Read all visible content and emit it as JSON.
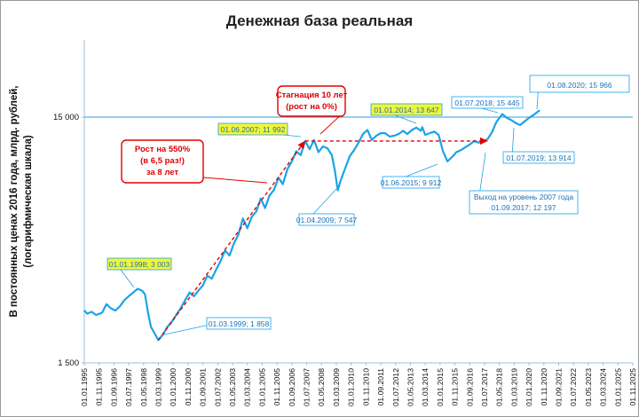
{
  "chart_data": {
    "type": "line",
    "title": "Денежная база реальная",
    "ylabel_lines": [
      "В постоянных ценах 2016 года, млрд. рублей,",
      "(логарифмическая шкала)"
    ],
    "y_scale": "log",
    "ylim": [
      1500,
      30000
    ],
    "y_ticks": [
      1500,
      15000
    ],
    "y_tick_labels": [
      "1 500",
      "15 000"
    ],
    "x_range": [
      "1995-01-01",
      "2025-11-01"
    ],
    "x_tick_labels": [
      "01.01.1995",
      "01.11.1995",
      "01.09.1996",
      "01.07.1997",
      "01.05.1998",
      "01.03.1999",
      "01.01.2000",
      "01.11.2000",
      "01.09.2001",
      "01.07.2002",
      "01.05.2003",
      "01.03.2004",
      "01.01.2005",
      "01.11.2005",
      "01.09.2006",
      "01.07.2007",
      "01.05.2008",
      "01.03.2009",
      "01.01.2010",
      "01.11.2010",
      "01.09.2011",
      "01.07.2012",
      "01.05.2013",
      "01.03.2014",
      "01.01.2015",
      "01.11.2015",
      "01.09.2016",
      "01.07.2017",
      "01.05.2018",
      "01.03.2019",
      "01.01.2020",
      "01.11.2020",
      "01.09.2021",
      "01.07.2022",
      "01.05.2023",
      "01.03.2024",
      "01.01.2025",
      "01.11.2025"
    ],
    "line_color": "#1aa3e8",
    "series": [
      {
        "x": [
          "1995-01-01",
          "1995-03-01",
          "1995-06-01",
          "1995-09-01",
          "1996-01-01",
          "1996-04-01",
          "1996-07-01",
          "1996-10-01",
          "1997-01-01",
          "1997-04-01",
          "1997-07-01",
          "1997-10-01",
          "1998-01-01",
          "1998-04-01",
          "1998-06-01",
          "1998-08-01",
          "1998-10-01",
          "1998-12-01",
          "1999-03-01",
          "1999-06-01",
          "1999-09-01",
          "1999-12-01",
          "2000-03-01",
          "2000-06-01",
          "2000-09-01",
          "2000-12-01",
          "2001-03-01",
          "2001-06-01",
          "2001-09-01",
          "2001-12-01",
          "2002-03-01",
          "2002-06-01",
          "2002-09-01",
          "2002-12-01",
          "2003-03-01",
          "2003-06-01",
          "2003-09-01",
          "2003-12-01",
          "2004-03-01",
          "2004-06-01",
          "2004-09-01",
          "2004-12-01",
          "2005-03-01",
          "2005-06-01",
          "2005-09-01",
          "2005-12-01",
          "2006-03-01",
          "2006-06-01",
          "2006-09-01",
          "2006-12-01",
          "2007-03-01",
          "2007-06-01",
          "2007-09-01",
          "2007-12-01",
          "2008-03-01",
          "2008-06-01",
          "2008-09-01",
          "2008-12-01",
          "2009-02-01",
          "2009-04-01",
          "2009-06-01",
          "2009-09-01",
          "2009-12-01",
          "2010-03-01",
          "2010-06-01",
          "2010-09-01",
          "2010-12-01",
          "2011-03-01",
          "2011-06-01",
          "2011-09-01",
          "2011-12-01",
          "2012-03-01",
          "2012-06-01",
          "2012-09-01",
          "2012-12-01",
          "2013-03-01",
          "2013-06-01",
          "2013-09-01",
          "2013-12-01",
          "2014-01-01",
          "2014-03-01",
          "2014-06-01",
          "2014-09-01",
          "2014-12-01",
          "2015-03-01",
          "2015-06-01",
          "2015-09-01",
          "2015-12-01",
          "2016-03-01",
          "2016-06-01",
          "2016-09-01",
          "2016-12-01",
          "2017-03-01",
          "2017-06-01",
          "2017-09-01",
          "2017-12-01",
          "2018-03-01",
          "2018-07-01",
          "2018-10-01",
          "2019-01-01",
          "2019-04-01",
          "2019-07-01",
          "2019-10-01",
          "2020-01-01",
          "2020-04-01",
          "2020-08-01"
        ],
        "values": [
          2450,
          2380,
          2420,
          2350,
          2400,
          2600,
          2500,
          2450,
          2550,
          2700,
          2800,
          2900,
          3003,
          2950,
          2850,
          2400,
          2100,
          2000,
          1858,
          1950,
          2100,
          2200,
          2350,
          2500,
          2700,
          2900,
          2800,
          2950,
          3100,
          3400,
          3300,
          3600,
          3900,
          4300,
          4100,
          4600,
          5000,
          5800,
          5300,
          5900,
          6200,
          7000,
          6400,
          7200,
          7600,
          8500,
          8000,
          9200,
          9900,
          10900,
          10500,
          11992,
          11100,
          12100,
          10800,
          11400,
          11200,
          10500,
          9100,
          7547,
          8300,
          9300,
          10400,
          11000,
          11800,
          12800,
          13300,
          12100,
          12600,
          12900,
          12900,
          12500,
          12600,
          12800,
          13200,
          12800,
          13300,
          13600,
          13200,
          13647,
          12700,
          12900,
          13100,
          12700,
          10900,
          9912,
          10300,
          10800,
          11000,
          11300,
          11600,
          12000,
          11800,
          12000,
          12197,
          13000,
          14300,
          15445,
          14900,
          14600,
          14200,
          13914,
          14400,
          14900,
          15300,
          15966
        ]
      }
    ],
    "point_labels": [
      {
        "date": "1998-01-01",
        "value": 3003,
        "text": "01.01.1998;  3 003",
        "highlight": true
      },
      {
        "date": "1999-03-01",
        "value": 1858,
        "text": "01.03.1999;  1 858",
        "highlight": false
      },
      {
        "date": "2007-06-01",
        "value": 11992,
        "text": "01.06.2007;  11 992",
        "highlight": true
      },
      {
        "date": "2009-04-01",
        "value": 7547,
        "text": "01.04.2009;  7 547",
        "highlight": false
      },
      {
        "date": "2014-01-01",
        "value": 13647,
        "text": "01.01.2014;  13 647",
        "highlight": true
      },
      {
        "date": "2015-06-01",
        "value": 9912,
        "text": "01.06.2015;  9 912",
        "highlight": false
      },
      {
        "date": "2017-09-01",
        "value": 12197,
        "text_lines": [
          "Выход на уровень 2007 года",
          "01.09.2017;  12 197"
        ],
        "highlight": false
      },
      {
        "date": "2018-07-01",
        "value": 15445,
        "text": "01.07.2018;  15 445",
        "highlight": false
      },
      {
        "date": "2019-07-01",
        "value": 13914,
        "text": "01.07.2019;  13 914",
        "highlight": false
      },
      {
        "date": "2020-08-01",
        "value": 15966,
        "text": "01.08.2020;  15 966",
        "highlight": false,
        "big": true
      }
    ],
    "callouts": [
      {
        "text_lines": [
          "Рост на 550%",
          "(в 6,5 раз!)",
          "за 8 лет"
        ]
      },
      {
        "text_lines": [
          "Стагнация 10 лет",
          "(рост на 0%)"
        ]
      }
    ],
    "trend_lines": [
      {
        "from_date": "1999-03-01",
        "from_value": 1858,
        "to_date": "2007-06-01",
        "to_value": 11992
      },
      {
        "from_date": "2007-06-01",
        "from_value": 11992,
        "to_date": "2017-09-01",
        "to_value": 11992
      }
    ],
    "reference_line": 15000
  }
}
